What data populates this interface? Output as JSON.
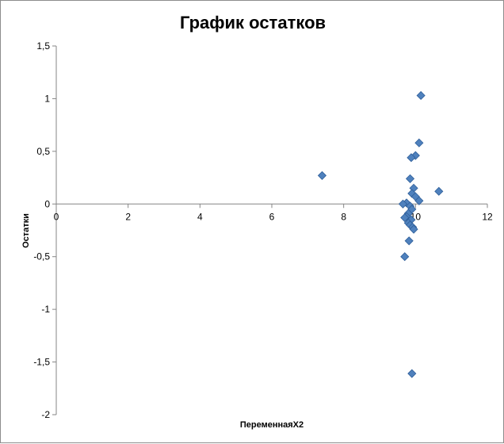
{
  "chart_data": {
    "type": "scatter",
    "title": "График остатков",
    "xlabel": "ПеременнаяX2",
    "ylabel": "Остатки",
    "xlim": [
      0,
      12
    ],
    "ylim": [
      -2,
      1.5
    ],
    "x_ticks": [
      "0",
      "2",
      "4",
      "6",
      "8",
      "10",
      "12"
    ],
    "y_ticks": [
      "-2",
      "-1,5",
      "-1",
      "-0,5",
      "0",
      "0,5",
      "1",
      "1,5"
    ],
    "grid": false,
    "legend": "none",
    "marker": "diamond",
    "marker_color": "#4f81bd",
    "marker_edge_color": "#2f5f9a",
    "series": [
      {
        "points": [
          {
            "x": 7.4,
            "y": 0.27
          },
          {
            "x": 10.15,
            "y": 1.03
          },
          {
            "x": 10.1,
            "y": 0.58
          },
          {
            "x": 10.0,
            "y": 0.46
          },
          {
            "x": 9.88,
            "y": 0.44
          },
          {
            "x": 9.85,
            "y": 0.24
          },
          {
            "x": 9.95,
            "y": 0.15
          },
          {
            "x": 9.9,
            "y": 0.1
          },
          {
            "x": 10.0,
            "y": 0.07
          },
          {
            "x": 10.65,
            "y": 0.12
          },
          {
            "x": 10.1,
            "y": 0.03
          },
          {
            "x": 9.75,
            "y": 0.01
          },
          {
            "x": 9.65,
            "y": 0.0
          },
          {
            "x": 9.85,
            "y": -0.02
          },
          {
            "x": 9.9,
            "y": -0.05
          },
          {
            "x": 9.8,
            "y": -0.09
          },
          {
            "x": 9.75,
            "y": -0.12
          },
          {
            "x": 9.7,
            "y": -0.13
          },
          {
            "x": 9.88,
            "y": -0.15
          },
          {
            "x": 9.8,
            "y": -0.18
          },
          {
            "x": 9.85,
            "y": -0.2
          },
          {
            "x": 9.92,
            "y": -0.22
          },
          {
            "x": 9.95,
            "y": -0.24
          },
          {
            "x": 9.82,
            "y": -0.35
          },
          {
            "x": 9.7,
            "y": -0.5
          },
          {
            "x": 9.9,
            "y": -1.61
          }
        ]
      }
    ]
  }
}
